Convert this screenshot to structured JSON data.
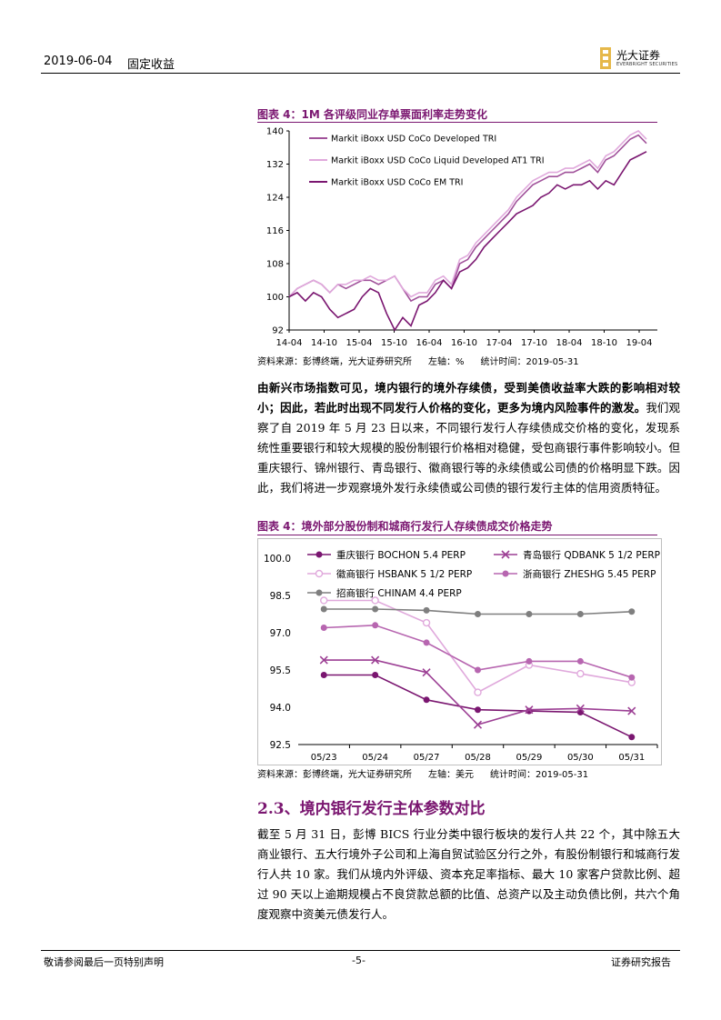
{
  "header": {
    "date": "2019-06-04",
    "section": "固定收益",
    "logo_cn": "光大证券",
    "logo_en": "EVERBRIGHT SECURITIES"
  },
  "figure1": {
    "title": "图表 4：1M 各评级同业存单票面利率走势变化",
    "source_parts": [
      "资料来源：彭博终端，光大证券研究所",
      "左轴：%",
      "统计时间：2019-05-31"
    ],
    "chart_data": {
      "type": "line",
      "x_ticks": [
        "14-04",
        "14-10",
        "15-04",
        "15-10",
        "16-04",
        "16-10",
        "17-04",
        "17-10",
        "18-04",
        "18-10",
        "19-04"
      ],
      "y_ticks": [
        140,
        132,
        124,
        116,
        108,
        100,
        92
      ],
      "ylim": [
        92,
        140
      ],
      "legend_position": "top-left",
      "series": [
        {
          "name": "Markit iBoxx USD CoCo Developed TRI",
          "color": "#a0519a",
          "values": [
            100,
            102,
            103,
            104,
            103,
            101,
            103,
            102,
            103,
            104,
            104,
            103,
            104,
            105,
            102,
            99,
            100,
            100,
            103,
            104,
            102,
            108,
            109,
            112,
            114,
            116,
            118,
            120,
            123,
            125,
            127,
            128,
            129,
            129,
            130,
            130,
            131,
            132,
            130,
            133,
            134,
            136,
            138,
            139,
            137
          ]
        },
        {
          "name": "Markit iBoxx USD CoCo Liquid Developed AT1 TRI",
          "color": "#e0a9dc",
          "values": [
            100,
            102,
            103,
            104,
            103,
            101,
            103,
            103,
            104,
            104,
            105,
            104,
            104,
            105,
            102,
            100,
            101,
            101,
            104,
            105,
            103,
            109,
            110,
            113,
            115,
            117,
            119,
            121,
            124,
            126,
            128,
            129,
            130,
            130,
            131,
            131,
            132,
            133,
            131,
            134,
            135,
            137,
            139,
            140,
            138
          ]
        },
        {
          "name": "Markit iBoxx USD CoCo EM TRI",
          "color": "#7a1670",
          "values": [
            100,
            101,
            99,
            101,
            100,
            97,
            95,
            96,
            97,
            100,
            102,
            101,
            96,
            92,
            95,
            93,
            98,
            99,
            101,
            104,
            102,
            106,
            107,
            109,
            112,
            114,
            116,
            118,
            120,
            121,
            122,
            124,
            125,
            127,
            126,
            127,
            127,
            128,
            126,
            128,
            127,
            130,
            133,
            134,
            135
          ]
        }
      ]
    }
  },
  "paragraph1": {
    "bold": "由新兴市场指数可见，境内银行的境外存续债，受到美债收益率大跌的影响相对较小；因此，若此时出现不同发行人价格的变化，更多为境内风险事件的激发。",
    "normal": "我们观察了自 2019 年 5 月 23 日以来，不同银行发行人存续债成交价格的变化，发现系统性重要银行和较大规模的股份制银行价格相对稳健，受包商银行事件影响较小。但重庆银行、锦州银行、青岛银行、徽商银行等的永续债或公司债的价格明显下跌。因此，我们将进一步观察境外发行永续债或公司债的银行发行主体的信用资质特征。"
  },
  "figure2": {
    "title": "图表 4：境外部分股份制和城商行发行人存续债成交价格走势",
    "source_parts": [
      "资料来源：彭博终端，光大证券研究所",
      "左轴：美元",
      "统计时间：2019-05-31"
    ],
    "chart_data": {
      "type": "line",
      "categories": [
        "05/23",
        "05/24",
        "05/27",
        "05/28",
        "05/29",
        "05/30",
        "05/31"
      ],
      "y_ticks": [
        100.0,
        98.5,
        97.0,
        95.5,
        94.0,
        92.5
      ],
      "ylim": [
        92.5,
        100.0
      ],
      "legend_position": "top",
      "series": [
        {
          "name": "重庆银行 BOCHON 5.4 PERP",
          "color": "#7a1670",
          "marker": "circle-filled",
          "values": [
            95.3,
            95.3,
            94.3,
            93.9,
            93.85,
            93.8,
            92.8
          ]
        },
        {
          "name": "青岛银行 QDBANK 5 1/2 PERP",
          "color": "#9c3f94",
          "marker": "x",
          "values": [
            95.9,
            95.9,
            95.4,
            93.3,
            93.9,
            93.95,
            93.85
          ]
        },
        {
          "name": "徽商银行 HSBANK 5 1/2 PERP",
          "color": "#e0a9dc",
          "marker": "circle-open",
          "values": [
            98.3,
            98.3,
            97.4,
            94.6,
            95.7,
            95.35,
            95.0
          ]
        },
        {
          "name": "浙商银行 ZHESHG 5.45 PERP",
          "color": "#b766b0",
          "marker": "circle-filled",
          "values": [
            97.2,
            97.3,
            96.6,
            95.5,
            95.85,
            95.85,
            95.2
          ]
        },
        {
          "name": "招商银行 CHINAM 4.4 PERP",
          "color": "#7f7f7f",
          "marker": "circle-filled",
          "values": [
            97.95,
            97.95,
            97.9,
            97.75,
            97.75,
            97.75,
            97.85
          ]
        }
      ]
    }
  },
  "section": {
    "heading": "2.3、境内银行发行主体参数对比",
    "paragraph": "截至 5 月 31 日，彭博 BICS 行业分类中银行板块的发行人共 22 个，其中除五大商业银行、五大行境外子公司和上海自贸试验区分行之外，有股份制银行和城商行发行人共 10 家。我们从境内外评级、资本充足率指标、最大 10 家客户贷款比例、超过 90 天以上逾期规模占不良贷款总额的比值、总资产以及主动负债比例，共六个角度观察中资美元债发行人。"
  },
  "footer": {
    "left": "敬请参阅最后一页特别声明",
    "page": "-5-",
    "right": "证券研究报告"
  }
}
